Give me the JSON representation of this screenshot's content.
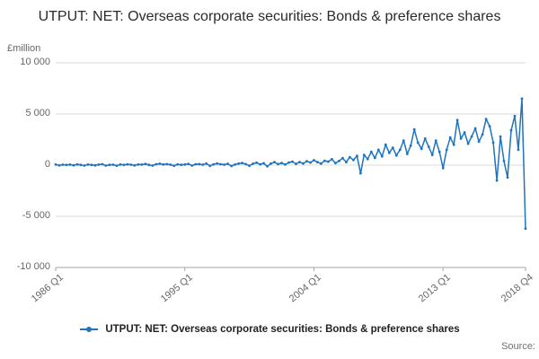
{
  "title": "UTPUT: NET: Overseas corporate securities: Bonds & preference shares",
  "y_axis_unit": "£million",
  "legend_label": "UTPUT: NET: Overseas corporate securities: Bonds & preference shares",
  "source_label": "Source:",
  "colors": {
    "line": "#2073bc",
    "grid": "#d9d9d9",
    "axis": "#a6a6a6",
    "tick_text": "#666666"
  },
  "chart_data": {
    "type": "line",
    "title": "UTPUT: NET: Overseas corporate securities: Bonds & preference shares",
    "xlabel": "",
    "ylabel": "£million",
    "ylim": [
      -10000,
      10000
    ],
    "ytick_values": [
      10000,
      5000,
      0,
      -5000,
      -10000
    ],
    "ytick_labels": [
      "10 000",
      "5 000",
      "0",
      "-5 000",
      "-10 000"
    ],
    "xtick_labels": [
      "1986 Q1",
      "1995 Q1",
      "2004 Q1",
      "2013 Q1",
      "2018 Q4"
    ],
    "xtick_indices": [
      0,
      36,
      72,
      108,
      131
    ],
    "x_start": "1986 Q1",
    "x_end": "2018 Q4",
    "frequency": "quarterly",
    "grid": "horizontal",
    "legend_position": "bottom",
    "series": [
      {
        "name": "UTPUT: NET: Overseas corporate securities: Bonds & preference shares",
        "values": [
          60,
          -30,
          40,
          20,
          50,
          -20,
          70,
          30,
          -40,
          60,
          20,
          -30,
          50,
          90,
          -40,
          30,
          40,
          -50,
          60,
          20,
          80,
          40,
          -30,
          60,
          50,
          110,
          30,
          -40,
          90,
          140,
          60,
          100,
          40,
          -60,
          80,
          30,
          60,
          120,
          -40,
          90,
          100,
          40,
          150,
          -70,
          80,
          170,
          90,
          40,
          130,
          -90,
          60,
          150,
          200,
          100,
          -60,
          140,
          240,
          80,
          180,
          -110,
          150,
          290,
          100,
          200,
          60,
          250,
          340,
          120,
          300,
          160,
          390,
          250,
          480,
          290,
          150,
          430,
          340,
          580,
          200,
          400,
          680,
          300,
          780,
          500,
          900,
          -800,
          1000,
          600,
          1300,
          700,
          1500,
          850,
          2000,
          1200,
          1700,
          950,
          1500,
          2400,
          1100,
          1900,
          3500,
          2200,
          1600,
          2600,
          1800,
          1000,
          2400,
          1300,
          -300,
          1500,
          2700,
          2000,
          4400,
          2600,
          3200,
          2100,
          2800,
          3600,
          2300,
          3000,
          4500,
          3800,
          2200,
          -1500,
          2800,
          400,
          -1200,
          3400,
          4800,
          1500,
          6500,
          -6200
        ]
      }
    ]
  }
}
